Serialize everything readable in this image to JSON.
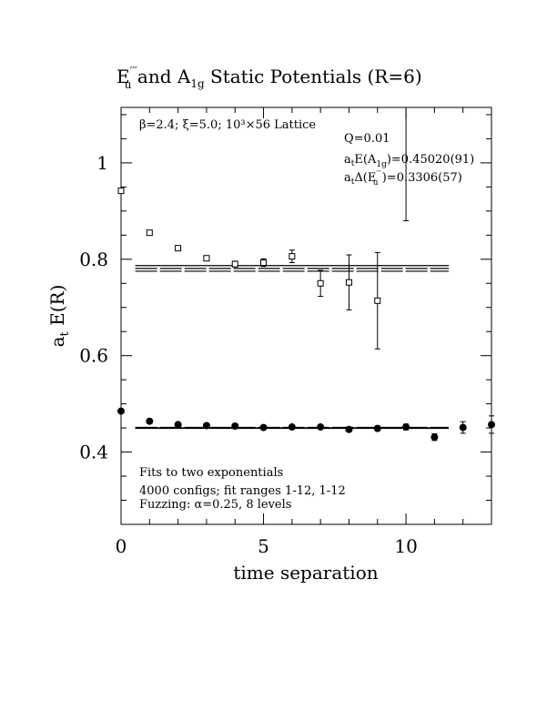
{
  "chart_data": {
    "type": "scatter",
    "title_parts": {
      "e_main": "E",
      "e_primes": "′′′",
      "e_sub": "u",
      "and": " and ",
      "a_main": "A",
      "a_sub": "1g",
      "rest": " Static Potentials (R=6)"
    },
    "xlabel": "time separation",
    "ylabel_main": "a",
    "ylabel_sub": "t",
    "ylabel_rest": " E(R)",
    "xlim": [
      0,
      13
    ],
    "ylim": [
      0.25,
      1.115
    ],
    "x_ticks": [
      0,
      5,
      10
    ],
    "x_tick_labels": [
      "0",
      "5",
      "10"
    ],
    "y_ticks": [
      0.4,
      0.6,
      0.8,
      1.0
    ],
    "y_tick_labels": [
      "0.4",
      "0.6",
      "0.8",
      "1"
    ],
    "grid": false,
    "series": [
      {
        "marker": "open-square",
        "points": [
          {
            "x": 0,
            "y": 0.942,
            "err": 0.004
          },
          {
            "x": 1,
            "y": 0.855,
            "err": 0.004
          },
          {
            "x": 2,
            "y": 0.823,
            "err": 0.004
          },
          {
            "x": 3,
            "y": 0.802,
            "err": 0.005
          },
          {
            "x": 4,
            "y": 0.79,
            "err": 0.006
          },
          {
            "x": 5,
            "y": 0.793,
            "err": 0.008
          },
          {
            "x": 6,
            "y": 0.806,
            "err": 0.013
          },
          {
            "x": 7,
            "y": 0.75,
            "err": 0.027
          },
          {
            "x": 8,
            "y": 0.752,
            "err": 0.057
          },
          {
            "x": 9,
            "y": 0.714,
            "err": 0.1
          },
          {
            "x": 10,
            "y": 1.2,
            "err": 0.32
          }
        ]
      },
      {
        "marker": "filled-circle",
        "points": [
          {
            "x": 0,
            "y": 0.485,
            "err": 0.003
          },
          {
            "x": 1,
            "y": 0.464,
            "err": 0.003
          },
          {
            "x": 2,
            "y": 0.457,
            "err": 0.003
          },
          {
            "x": 3,
            "y": 0.455,
            "err": 0.003
          },
          {
            "x": 4,
            "y": 0.454,
            "err": 0.003
          },
          {
            "x": 5,
            "y": 0.451,
            "err": 0.003
          },
          {
            "x": 6,
            "y": 0.452,
            "err": 0.003
          },
          {
            "x": 7,
            "y": 0.452,
            "err": 0.004
          },
          {
            "x": 8,
            "y": 0.447,
            "err": 0.005
          },
          {
            "x": 9,
            "y": 0.449,
            "err": 0.005
          },
          {
            "x": 10,
            "y": 0.452,
            "err": 0.006
          },
          {
            "x": 11,
            "y": 0.431,
            "err": 0.007
          },
          {
            "x": 12,
            "y": 0.451,
            "err": 0.012
          },
          {
            "x": 13,
            "y": 0.457,
            "err": 0.018
          }
        ]
      }
    ],
    "fit_lines": [
      {
        "x": [
          0.5,
          11.5
        ],
        "y": 0.7752,
        "dashed": true
      },
      {
        "x": [
          0.5,
          11.5
        ],
        "y": 0.781,
        "dashed": true
      },
      {
        "x": [
          0.5,
          11.5
        ],
        "y": 0.7868,
        "dashed": false
      },
      {
        "x": [
          0.5,
          11.5
        ],
        "y": 0.4493,
        "dashed": false
      },
      {
        "x": [
          0.5,
          11.5
        ],
        "y": 0.4502,
        "dashed": false
      },
      {
        "x": [
          0.5,
          11.5
        ],
        "y": 0.4511,
        "dashed": true
      }
    ],
    "annotations": {
      "lattice": "β=2.4; ξ=5.0; 10³×56 Lattice",
      "q": "Q=0.01",
      "fit_a1g_prefix": "a",
      "fit_a1g_sub_t": "t",
      "fit_a1g_mid": "E(A",
      "fit_a1g_sub": "1g",
      "fit_a1g_value": ")=0.45020(91)",
      "fit_eu_prefix": "a",
      "fit_eu_sub_t": "t",
      "fit_eu_mid": "Δ(E",
      "fit_eu_primes": "′′′",
      "fit_eu_sub": "u",
      "fit_eu_value": " )=0.3306(57)",
      "footer_1": "Fits to two exponentials",
      "footer_2": "4000 configs; fit ranges 1-12, 1-12",
      "footer_3": "Fuzzing: α=0.25, 8 levels"
    }
  }
}
